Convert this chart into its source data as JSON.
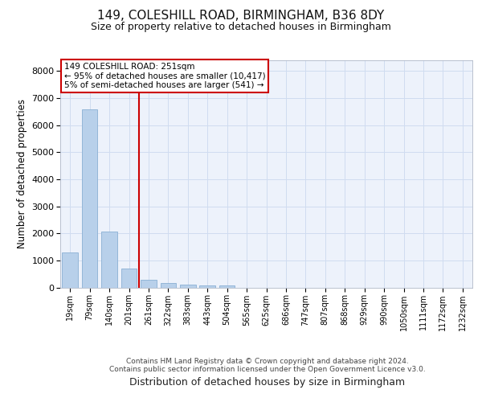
{
  "title_line1": "149, COLESHILL ROAD, BIRMINGHAM, B36 8DY",
  "title_line2": "Size of property relative to detached houses in Birmingham",
  "xlabel": "Distribution of detached houses by size in Birmingham",
  "ylabel": "Number of detached properties",
  "categories": [
    "19sqm",
    "79sqm",
    "140sqm",
    "201sqm",
    "261sqm",
    "322sqm",
    "383sqm",
    "443sqm",
    "504sqm",
    "565sqm",
    "625sqm",
    "686sqm",
    "747sqm",
    "807sqm",
    "868sqm",
    "929sqm",
    "990sqm",
    "1050sqm",
    "1111sqm",
    "1172sqm",
    "1232sqm"
  ],
  "values": [
    1300,
    6600,
    2080,
    700,
    280,
    160,
    100,
    60,
    60,
    0,
    0,
    0,
    0,
    0,
    0,
    0,
    0,
    0,
    0,
    0,
    0
  ],
  "bar_color": "#b8d0ea",
  "bar_edge_color": "#8ab0d4",
  "grid_color": "#d0dcf0",
  "vline_color": "#cc0000",
  "vline_x_index": 3.5,
  "annotation_line1": "149 COLESHILL ROAD: 251sqm",
  "annotation_line2": "← 95% of detached houses are smaller (10,417)",
  "annotation_line3": "5% of semi-detached houses are larger (541) →",
  "annotation_box_color": "#cc0000",
  "ylim": [
    0,
    8400
  ],
  "yticks": [
    0,
    1000,
    2000,
    3000,
    4000,
    5000,
    6000,
    7000,
    8000
  ],
  "footnote_line1": "Contains HM Land Registry data © Crown copyright and database right 2024.",
  "footnote_line2": "Contains public sector information licensed under the Open Government Licence v3.0.",
  "background_color": "#edf2fb"
}
